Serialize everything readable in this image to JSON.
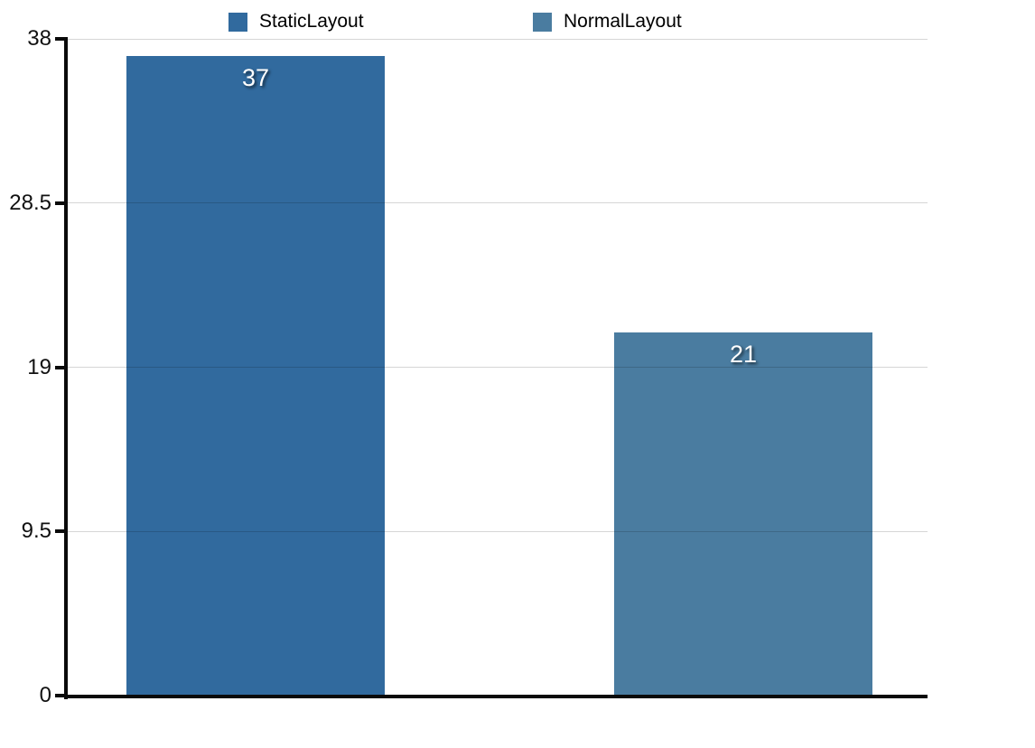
{
  "chart_data": {
    "type": "bar",
    "title": "",
    "categories": [
      "StaticLayout",
      "NormalLayout"
    ],
    "values": [
      37,
      21
    ],
    "value_labels": [
      "37",
      "21"
    ],
    "series_colors": [
      "#316A9E",
      "#4A7CA0"
    ],
    "legend": [
      {
        "label": "StaticLayout",
        "color": "#316A9E"
      },
      {
        "label": "NormalLayout",
        "color": "#4A7CA0"
      }
    ],
    "legend_position": "top",
    "xlabel": "",
    "ylabel": "",
    "ylim": [
      0,
      38
    ],
    "yticks": [
      0,
      9.5,
      19,
      28.5,
      38
    ],
    "ytick_labels": [
      "0",
      "9.5",
      "19",
      "28.5",
      "38"
    ],
    "grid": true,
    "gridline_color": "#d8d8d8",
    "axis_color": "#0a0a0a",
    "value_label_color": "#ffffff",
    "background_color": "#ffffff"
  }
}
